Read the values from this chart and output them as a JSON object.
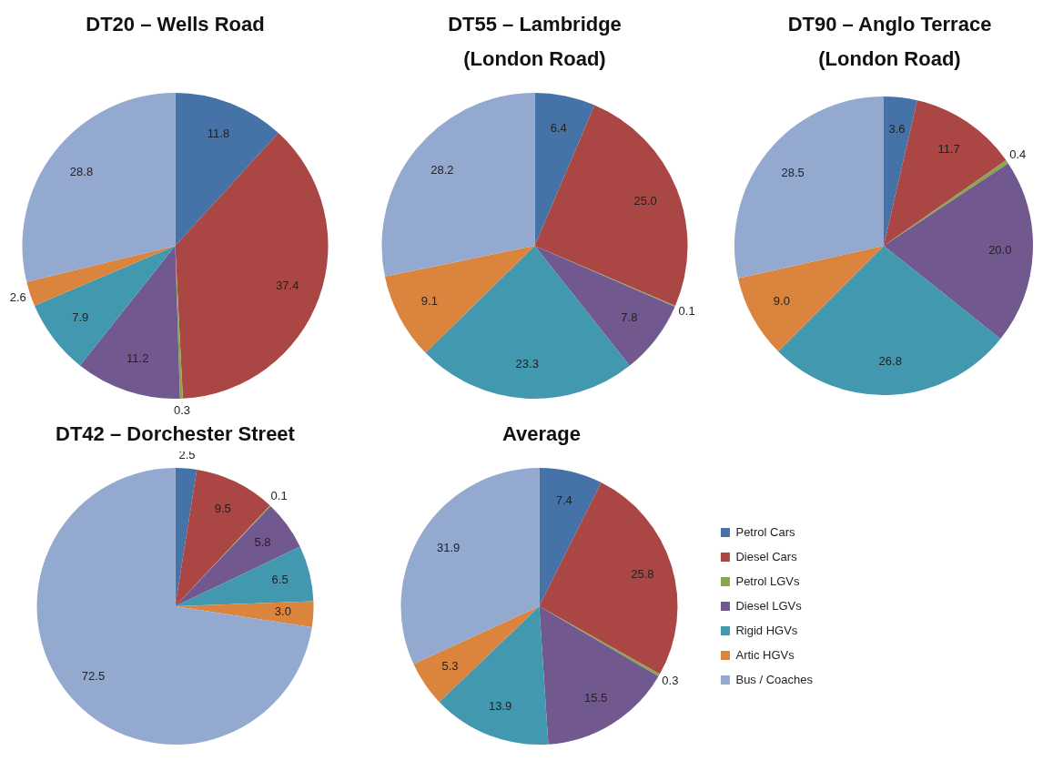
{
  "chart_data": [
    {
      "type": "pie",
      "title": "DT20 – Wells Road",
      "categories": [
        null,
        null,
        null,
        null,
        null,
        null,
        null
      ],
      "values": [
        11.8,
        37.4,
        0.3,
        11.2,
        7.9,
        2.6,
        28.8
      ],
      "value_labels": [
        "11.8",
        "37.4",
        "0.3",
        "11.2",
        "7.9",
        "2.6",
        "28.8"
      ],
      "colors": [
        "#4572a7",
        "#aa4643",
        "#89a54e",
        "#71588f",
        "#4198af",
        "#db843d",
        "#93a9cf"
      ]
    },
    {
      "type": "pie",
      "title": "DT55 – Lambridge\n(London Road)",
      "categories": [
        null,
        null,
        null,
        null,
        null,
        null,
        null
      ],
      "values": [
        6.4,
        25.0,
        0.1,
        7.8,
        23.3,
        9.1,
        28.2
      ],
      "value_labels": [
        "6.4",
        "25.0",
        "0.1",
        "7.8",
        "23.3",
        "9.1",
        "28.2"
      ],
      "colors": [
        "#4572a7",
        "#aa4643",
        "#89a54e",
        "#71588f",
        "#4198af",
        "#db843d",
        "#93a9cf"
      ]
    },
    {
      "type": "pie",
      "title": "DT90 – Anglo Terrace\n(London Road)",
      "categories": [
        null,
        null,
        null,
        null,
        null,
        null,
        null
      ],
      "values": [
        3.6,
        11.7,
        0.4,
        20.0,
        26.8,
        9.0,
        28.5
      ],
      "value_labels": [
        "3.6",
        "11.7",
        "0.4",
        "20.0",
        "26.8",
        "9.0",
        "28.5"
      ],
      "colors": [
        "#4572a7",
        "#aa4643",
        "#89a54e",
        "#71588f",
        "#4198af",
        "#db843d",
        "#93a9cf"
      ]
    },
    {
      "type": "pie",
      "title": "DT42 – Dorchester Street",
      "categories": [
        null,
        null,
        null,
        null,
        null,
        null,
        null
      ],
      "values": [
        2.5,
        9.5,
        0.1,
        5.8,
        6.5,
        3.0,
        72.5
      ],
      "value_labels": [
        "2.5",
        "9.5",
        "0.1",
        "5.8",
        "6.5",
        "3.0",
        "72.5"
      ],
      "colors": [
        "#4572a7",
        "#aa4643",
        "#89a54e",
        "#71588f",
        "#4198af",
        "#db843d",
        "#93a9cf"
      ]
    },
    {
      "type": "pie",
      "title": "Average",
      "categories": [
        "Petrol Cars",
        "Diesel Cars",
        "Petrol LGVs",
        "Diesel LGVs",
        "Rigid HGVs",
        "Artic HGVs",
        "Bus / Coaches"
      ],
      "values": [
        7.4,
        25.8,
        0.3,
        15.5,
        13.9,
        5.3,
        31.9
      ],
      "value_labels": [
        "7.4",
        "25.8",
        "0.3",
        "15.5",
        "13.9",
        "5.3",
        "31.9"
      ],
      "colors": [
        "#4572a7",
        "#aa4643",
        "#89a54e",
        "#71588f",
        "#4198af",
        "#db843d",
        "#93a9cf"
      ],
      "legend": "right"
    }
  ]
}
